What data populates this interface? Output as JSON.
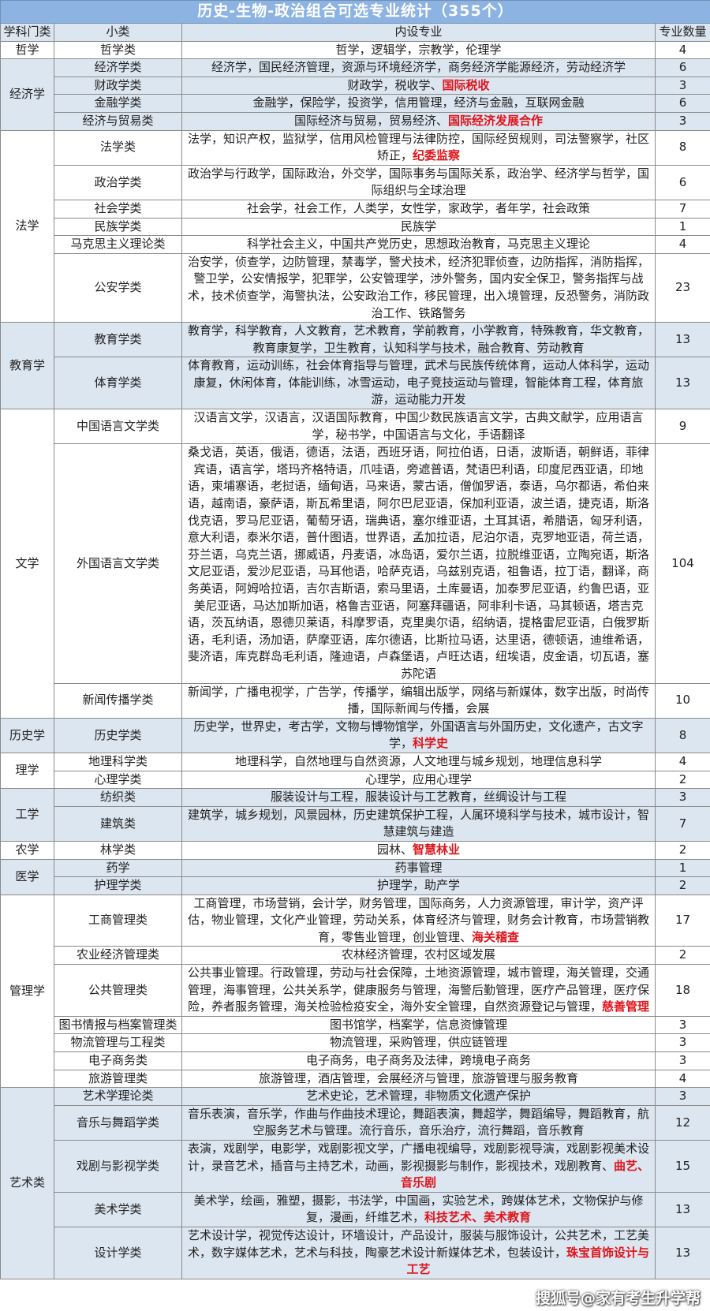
{
  "title": "历史-生物-政治组合可选专业统计（355个）",
  "headers": [
    "学科门类",
    "小类",
    "内设专业",
    "专业数量"
  ],
  "colors": {
    "title_bar": "#8db3e2",
    "band_blue": "#dce6f1",
    "highlight": "#e0151b"
  },
  "watermark": "搜狐号@家有考生升学帮",
  "categories": [
    {
      "name": "哲学",
      "band": "white",
      "subs": [
        {
          "name": "哲学类",
          "majors": "哲学，逻辑学，宗教学，伦理学",
          "highlight": "",
          "count": "4"
        }
      ]
    },
    {
      "name": "经济学",
      "band": "blue",
      "subs": [
        {
          "name": "经济学类",
          "majors": "经济学，国民经济管理，资源与环境经济学，商务经济学能源经济，劳动经济学",
          "highlight": "",
          "count": "6"
        },
        {
          "name": "财政学类",
          "majors": "财政学，税收学、",
          "highlight": "国际税收",
          "count": "3"
        },
        {
          "name": "金融学类",
          "majors": "金融学，保险学，投资学，信用管理，经济与金融，互联网金融",
          "highlight": "",
          "count": "6"
        },
        {
          "name": "经济与贸易类",
          "majors": "国际经济与贸易，贸易经济、",
          "highlight": "国际经济发展合作",
          "count": "3"
        }
      ]
    },
    {
      "name": "法学",
      "band": "white",
      "subs": [
        {
          "name": "法学类",
          "majors": "法学，知识产权，监狱学，信用风检管理与法律防控，国际经贸规则，司法警察学，社区矫正，",
          "highlight": "纪委监察",
          "count": "8"
        },
        {
          "name": "政治学类",
          "majors": "政治学与行政学，国际政治，外交学，国际事务与国际关系，政治学、经济学与哲学，国际组织与全球治理",
          "highlight": "",
          "count": "6"
        },
        {
          "name": "社会学类",
          "majors": "社会学，社会工作，人类学，女性学，家政学，者年学，社会政策",
          "highlight": "",
          "count": "7"
        },
        {
          "name": "民族学类",
          "majors": "民族学",
          "highlight": "",
          "count": "1"
        },
        {
          "name": "马克思主义理论类",
          "majors": "科学社会主义，中国共产党历史，思想政治教育，马克思主义理论",
          "highlight": "",
          "count": "4"
        },
        {
          "name": "公安学类",
          "majors": "治安学，侦查学，边防管理，禁毒学，警犬技术，经济犯罪侦查，边防指挥，消防指挥，警卫学，公安情报学，犯罪学，公安管理学，涉外警务，国内安全保卫，警务指挥与战术，技术侦查学，海警执法，公安政治工作，移民管理，出入境管理，反恐警务，消防政治工作、铁路警务",
          "highlight": "",
          "count": "23"
        }
      ]
    },
    {
      "name": "教育学",
      "band": "blue",
      "subs": [
        {
          "name": "教育学类",
          "majors": "教育学，科学教育，人文教育，艺术教育，学前教育，小学教育，特殊教育，华文教育，教育康复学，卫生教育，认知科学与技术，融合教育、劳动教育",
          "highlight": "",
          "count": "13"
        },
        {
          "name": "体育学类",
          "majors": "体育教育，运动训练，社会体育指导与管理，武术与民族传统体育，运动人体科学，运动康复，休闲体育，体能训练，冰雪运动，电子竞技运动与管理，智能体育工程，体育旅游，运动能力开发",
          "highlight": "",
          "count": "13"
        }
      ]
    },
    {
      "name": "文学",
      "band": "white",
      "subs": [
        {
          "name": "中国语言文学类",
          "majors": "汉语言文学，汉语言，汉语国际教育，中国少数民族语言文学，古典文献学，应用语言学，秘书学，中国语言与文化，手语翻译",
          "highlight": "",
          "count": "9"
        },
        {
          "name": "外国语言文学类",
          "majors": "桑戈语，英语，俄语，德语，法语，西班牙语，阿拉伯语，日语，波斯语，朝鲜语，菲律宾语，语言学，塔玛齐格特语，爪哇语，旁遮普语，梵语巴利语，印度尼西亚语，印地语，柬埔寨语，老挝语，缅甸语，马来语，蒙古语，僧伽罗语，泰语，乌尔都语，希伯来语，越南语，豪萨语，斯瓦希里语，阿尔巴尼亚语，保加利亚语，波兰语，捷克语，斯洛伐克语，罗马尼亚语，葡萄牙语，瑞典语，塞尔维亚语，土耳其语，希腊语，匈牙利语，意大利语，泰米尔语，普什图语，世界语，孟加拉语，尼泊尔语，克罗地亚语，荷兰语，芬兰语，乌克兰语，挪威语，丹麦语，冰岛语，爱尔兰语，拉脱维亚语，立陶宛语，斯洛文尼亚语，爱沙尼亚语，马耳他语，哈萨克语，乌兹别克语，祖鲁语，拉丁语，翻译，商务英语，阿姆哈拉语，吉尔吉斯语，索马里语，土库曼语，加泰罗尼亚语，约鲁巴语，亚美尼亚语，马达加斯加语，格鲁吉亚语，阿塞拜疆语，阿非利卡语，马其顿语，塔吉克语，茨瓦纳语，恩德贝莱语，科摩罗语，克里奥尔语，绍纳语，提格雷尼亚语，白俄罗斯语，毛利语，汤加语，萨摩亚语，库尔德语，比斯拉马语，达里语，德顿语，迪维希语，斐济语，库克群岛毛利语，隆迪语，卢森堡语，卢旺达语，纽埃语，皮金语，切瓦语，塞苏陀语",
          "highlight": "",
          "count": "104"
        },
        {
          "name": "新闻传播学类",
          "majors": "新闻学，广播电视学，广告学，传播学，编辑出版学，网络与新媒体，数字出版，时尚传播，国际新闻与传播，会展",
          "highlight": "",
          "count": "10"
        }
      ]
    },
    {
      "name": "历史学",
      "band": "blue",
      "subs": [
        {
          "name": "历史学类",
          "majors": "历史学，世界史，考古学，文物与博物馆学，外国语言与外国历史，文化遗产，古文字学，",
          "highlight": "科学史",
          "count": "8"
        }
      ]
    },
    {
      "name": "理学",
      "band": "white",
      "subs": [
        {
          "name": "地理科学类",
          "majors": "地理科学，自然地理与自然资源，人文地理与城乡规划，地理信息科学",
          "highlight": "",
          "count": "4"
        },
        {
          "name": "心理学类",
          "majors": "心理学，应用心理学",
          "highlight": "",
          "count": "2"
        }
      ]
    },
    {
      "name": "工学",
      "band": "blue",
      "subs": [
        {
          "name": "纺织类",
          "majors": "服装设计与工程，服装设计与工艺教育，丝绸设计与工程",
          "highlight": "",
          "count": "3"
        },
        {
          "name": "建筑类",
          "majors": "建筑学，城乡规划，风景园林，历史建筑保护工程，人属环境科学与技术，城市设计，智慧建筑与建造",
          "highlight": "",
          "count": "7"
        }
      ]
    },
    {
      "name": "农学",
      "band": "white",
      "subs": [
        {
          "name": "林学类",
          "majors": "园林、",
          "highlight": "智慧林业",
          "count": "2"
        }
      ]
    },
    {
      "name": "医学",
      "band": "blue",
      "subs": [
        {
          "name": "药学",
          "majors": "药事管理",
          "highlight": "",
          "count": "1"
        },
        {
          "name": "护理学类",
          "majors": "护理学，助产学",
          "highlight": "",
          "count": "2"
        }
      ]
    },
    {
      "name": "管理学",
      "band": "white",
      "subs": [
        {
          "name": "工商管理类",
          "majors": "工商管理，市场营销，会计学，财务管理，国际商务，人力资源管理，审计学，资产评估，物业管理，文化产业管理，劳动关系，体育经济与管理，财务会计教育，市场营销教育，零售业管理，创业管理、",
          "highlight": "海关稽查",
          "count": "17"
        },
        {
          "name": "农业经济管理类",
          "majors": "农林经济管理，农村区域发展",
          "highlight": "",
          "count": "2"
        },
        {
          "name": "公共管理类",
          "majors": "公共事业管理。行政管理，劳动与社会保障，土地资源管理，城市管理，海关管理，交通管理，海事管理，公共关系学，健康服务与管理，海警后勤管理，医疗产品管理，医疗保险，养者服务管理，海关检验检疫安全，海外安全管理，自然资源登记与管理，",
          "highlight": "慈善管理",
          "count": "18"
        },
        {
          "name": "图书情报与档案管理类",
          "majors": "图书馆学，档案学，信息资慷管理",
          "highlight": "",
          "count": "3"
        },
        {
          "name": "物流管理与工程类",
          "majors": "物流管理，采购管理，供应链管理",
          "highlight": "",
          "count": "3"
        },
        {
          "name": "电子商务类",
          "majors": "电子商务，电子商务及法律，跨境电子商务",
          "highlight": "",
          "count": "3"
        },
        {
          "name": "旅游管理类",
          "majors": "旅游管理，酒店管理，会展经济与管理，旅游管理与服务教育",
          "highlight": "",
          "count": "4"
        }
      ]
    },
    {
      "name": "艺术类",
      "band": "blue",
      "subs": [
        {
          "name": "艺术学理论类",
          "majors": "艺术史论，艺术管理，非物质文化遗产保护",
          "highlight": "",
          "count": "3"
        },
        {
          "name": "音乐与舞蹈学类",
          "majors": "音乐表演，音乐学，作曲与作曲技术理论，舞蹈表演，舞超学，舞蹈编导，舞蹈教育，航空服务艺术与管理。流行音乐，音乐治疗，流行舞蹈，音乐教育",
          "highlight": "",
          "count": "12"
        },
        {
          "name": "戏剧与影视学类",
          "majors": "表演，戏剧学，电影学，戏剧影视文学，广播电视编导，戏剧影视导演，戏剧影视美术设计，录音艺术，插音与主持艺术，动画，影视摄影与制作，影视技术，戏剧教育、",
          "highlight": "曲艺、音乐剧",
          "count": "15"
        },
        {
          "name": "美术学类",
          "majors": "美术学，绘画，雅塑，摄影，书法学，中国画，实验艺术，跨媒体艺术，文物保护与修复，漫画，纤维艺术，",
          "highlight": "科技艺术、美术教育",
          "count": "13"
        },
        {
          "name": "设计学类",
          "majors": "艺术设计学，视觉传达设计，环墙设计，产品设计，服装与服饰设计，公共艺术，工艺美术，数字媒体艺术，艺术与科技，陶豪艺术设计新媒体艺术，包装设计，",
          "highlight": "珠宝首饰设计与工艺",
          "count": "13"
        }
      ]
    }
  ]
}
